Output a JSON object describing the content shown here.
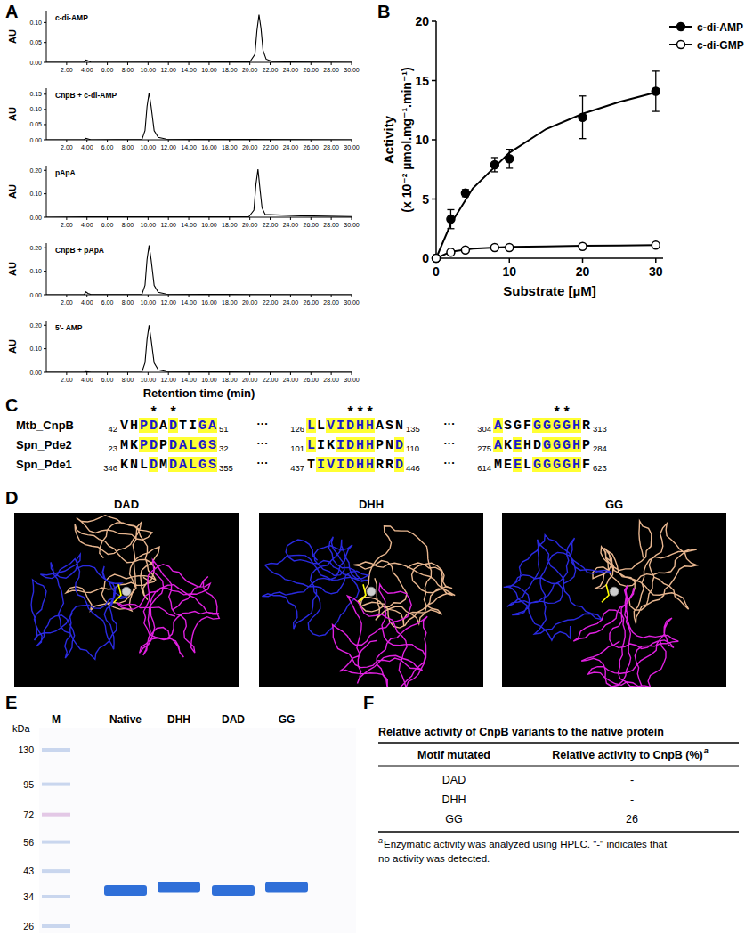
{
  "panel_labels": [
    "A",
    "B",
    "C",
    "D",
    "E",
    "F"
  ],
  "chart_data": [
    {
      "type": "line",
      "title": "c-di-AMP",
      "y_label": "AU",
      "color": "#000000",
      "x": [
        0,
        3.7,
        3.9,
        4.1,
        4.4,
        20.0,
        20.5,
        20.7,
        20.9,
        21.1,
        21.3,
        21.6,
        22.2,
        24,
        30
      ],
      "values": [
        0,
        0,
        0.006,
        0.004,
        0,
        0.001,
        0.02,
        0.08,
        0.12,
        0.085,
        0.03,
        0.008,
        0.002,
        0.001,
        0
      ],
      "xlim": [
        0,
        30
      ],
      "xticks": [
        {
          "value": 2,
          "label": "2.00"
        },
        {
          "value": 4,
          "label": "4.00"
        },
        {
          "value": 6,
          "label": "6.00"
        },
        {
          "value": 8,
          "label": "8.00"
        },
        {
          "value": 10,
          "label": "10.00"
        },
        {
          "value": 12,
          "label": "12.00"
        },
        {
          "value": 14,
          "label": "14.00"
        },
        {
          "value": 16,
          "label": "16.00"
        },
        {
          "value": 18,
          "label": "18.00"
        },
        {
          "value": 20,
          "label": "20.00"
        },
        {
          "value": 22,
          "label": "22.00"
        },
        {
          "value": 24,
          "label": "24.00"
        },
        {
          "value": 26,
          "label": "26.00"
        },
        {
          "value": 28,
          "label": "28.00"
        },
        {
          "value": 30,
          "label": "30.00"
        }
      ],
      "ylim": [
        0,
        0.13
      ],
      "yticks": [
        {
          "value": 0,
          "label": "0.00"
        },
        {
          "value": 0.05,
          "label": "0.05"
        },
        {
          "value": 0.1,
          "label": "0.10"
        }
      ]
    },
    {
      "type": "line",
      "title": "CnpB + c-di-AMP",
      "y_label": "AU",
      "color": "#000000",
      "x": [
        0,
        3.7,
        3.9,
        4.1,
        4.4,
        9.4,
        9.7,
        9.9,
        10.1,
        10.3,
        10.6,
        11.0,
        11.8,
        20,
        30
      ],
      "values": [
        0,
        0,
        0.005,
        0.003,
        0,
        0.001,
        0.03,
        0.11,
        0.155,
        0.11,
        0.03,
        0.008,
        0.002,
        0.001,
        0
      ],
      "xlim": [
        0,
        30
      ],
      "xticks": [
        {
          "value": 2,
          "label": "2.00"
        },
        {
          "value": 4,
          "label": "4.00"
        },
        {
          "value": 6,
          "label": "6.00"
        },
        {
          "value": 8,
          "label": "8.00"
        },
        {
          "value": 10,
          "label": "10.00"
        },
        {
          "value": 12,
          "label": "12.00"
        },
        {
          "value": 14,
          "label": "14.00"
        },
        {
          "value": 16,
          "label": "16.00"
        },
        {
          "value": 18,
          "label": "18.00"
        },
        {
          "value": 20,
          "label": "20.00"
        },
        {
          "value": 22,
          "label": "22.00"
        },
        {
          "value": 24,
          "label": "24.00"
        },
        {
          "value": 26,
          "label": "26.00"
        },
        {
          "value": 28,
          "label": "28.00"
        },
        {
          "value": 30,
          "label": "30.00"
        }
      ],
      "ylim": [
        0,
        0.17
      ],
      "yticks": [
        {
          "value": 0,
          "label": "0.00"
        },
        {
          "value": 0.05,
          "label": "0.05"
        },
        {
          "value": 0.1,
          "label": "0.10"
        },
        {
          "value": 0.15,
          "label": "0.15"
        }
      ]
    },
    {
      "type": "line",
      "title": "pApA",
      "y_label": "AU",
      "color": "#000000",
      "x": [
        0,
        4,
        19.9,
        20.4,
        20.6,
        20.8,
        21.0,
        21.2,
        21.5,
        22.5,
        25,
        30
      ],
      "values": [
        0,
        0.002,
        0.002,
        0.03,
        0.14,
        0.205,
        0.12,
        0.04,
        0.012,
        0.01,
        0.006,
        0.003
      ],
      "xlim": [
        0,
        30
      ],
      "xticks": [
        {
          "value": 2,
          "label": "2.00"
        },
        {
          "value": 4,
          "label": "4.00"
        },
        {
          "value": 6,
          "label": "6.00"
        },
        {
          "value": 8,
          "label": "8.00"
        },
        {
          "value": 10,
          "label": "10.00"
        },
        {
          "value": 12,
          "label": "12.00"
        },
        {
          "value": 14,
          "label": "14.00"
        },
        {
          "value": 16,
          "label": "16.00"
        },
        {
          "value": 18,
          "label": "18.00"
        },
        {
          "value": 20,
          "label": "20.00"
        },
        {
          "value": 22,
          "label": "22.00"
        },
        {
          "value": 24,
          "label": "24.00"
        },
        {
          "value": 26,
          "label": "26.00"
        },
        {
          "value": 28,
          "label": "28.00"
        },
        {
          "value": 30,
          "label": "30.00"
        }
      ],
      "ylim": [
        0,
        0.22
      ],
      "yticks": [
        {
          "value": 0,
          "label": "0.00"
        },
        {
          "value": 0.1,
          "label": "0.10"
        },
        {
          "value": 0.2,
          "label": "0.20"
        }
      ]
    },
    {
      "type": "line",
      "title": "CnpB + pApA",
      "y_label": "AU",
      "color": "#000000",
      "x": [
        0,
        3.7,
        3.9,
        4.1,
        4.4,
        9.4,
        9.7,
        9.9,
        10.1,
        10.3,
        10.6,
        11.0,
        11.8,
        20,
        30
      ],
      "values": [
        0,
        0,
        0.012,
        0.006,
        0.001,
        0.002,
        0.04,
        0.15,
        0.21,
        0.15,
        0.04,
        0.01,
        0.003,
        0.001,
        0
      ],
      "xlim": [
        0,
        30
      ],
      "xticks": [
        {
          "value": 2,
          "label": "2.00"
        },
        {
          "value": 4,
          "label": "4.00"
        },
        {
          "value": 6,
          "label": "6.00"
        },
        {
          "value": 8,
          "label": "8.00"
        },
        {
          "value": 10,
          "label": "10.00"
        },
        {
          "value": 12,
          "label": "12.00"
        },
        {
          "value": 14,
          "label": "14.00"
        },
        {
          "value": 16,
          "label": "16.00"
        },
        {
          "value": 18,
          "label": "18.00"
        },
        {
          "value": 20,
          "label": "20.00"
        },
        {
          "value": 22,
          "label": "22.00"
        },
        {
          "value": 24,
          "label": "24.00"
        },
        {
          "value": 26,
          "label": "26.00"
        },
        {
          "value": 28,
          "label": "28.00"
        },
        {
          "value": 30,
          "label": "30.00"
        }
      ],
      "ylim": [
        0,
        0.22
      ],
      "yticks": [
        {
          "value": 0,
          "label": "0.00"
        },
        {
          "value": 0.1,
          "label": "0.10"
        },
        {
          "value": 0.2,
          "label": "0.20"
        }
      ]
    },
    {
      "type": "line",
      "title": "5'- AMP",
      "y_label": "AU",
      "x_label": "Retention time (min)",
      "color": "#000000",
      "x": [
        0,
        3.7,
        3.9,
        4.1,
        4.4,
        9.4,
        9.7,
        9.9,
        10.1,
        10.3,
        10.6,
        11.0,
        11.8,
        20,
        30
      ],
      "values": [
        0,
        0,
        0.003,
        0.002,
        0,
        0.001,
        0.04,
        0.14,
        0.2,
        0.14,
        0.04,
        0.01,
        0.003,
        0.001,
        0
      ],
      "xlim": [
        0,
        30
      ],
      "xticks": [
        {
          "value": 2,
          "label": "2.00"
        },
        {
          "value": 4,
          "label": "4.00"
        },
        {
          "value": 6,
          "label": "6.00"
        },
        {
          "value": 8,
          "label": "8.00"
        },
        {
          "value": 10,
          "label": "10.00"
        },
        {
          "value": 12,
          "label": "12.00"
        },
        {
          "value": 14,
          "label": "14.00"
        },
        {
          "value": 16,
          "label": "16.00"
        },
        {
          "value": 18,
          "label": "18.00"
        },
        {
          "value": 20,
          "label": "20.00"
        },
        {
          "value": 22,
          "label": "22.00"
        },
        {
          "value": 24,
          "label": "24.00"
        },
        {
          "value": 26,
          "label": "26.00"
        },
        {
          "value": 28,
          "label": "28.00"
        },
        {
          "value": 30,
          "label": "30.00"
        }
      ],
      "ylim": [
        0,
        0.22
      ],
      "yticks": [
        {
          "value": 0,
          "label": "0.00"
        },
        {
          "value": 0.1,
          "label": "0.10"
        },
        {
          "value": 0.2,
          "label": "0.20"
        }
      ]
    },
    {
      "type": "scatter",
      "x_label": "Substrate [µM]",
      "y_label": [
        "Activity",
        "(x 10⁻² µmol.mg⁻¹.min⁻¹)"
      ],
      "legend": "top-right",
      "xlim": [
        0,
        31
      ],
      "xticks": [
        0,
        10,
        20,
        30
      ],
      "ylim": [
        0,
        20
      ],
      "yticks": [
        0,
        5,
        10,
        15,
        20
      ],
      "series": [
        {
          "name": "c-di-AMP",
          "color": "#000000",
          "marker": "circle",
          "x": [
            0,
            2,
            4,
            8,
            10,
            20,
            30
          ],
          "values": [
            0,
            3.3,
            5.5,
            7.9,
            8.4,
            11.9,
            14.1
          ],
          "error": [
            0,
            0.8,
            0.3,
            0.6,
            0.8,
            1.8,
            1.7
          ],
          "fit": {
            "x": [
              0,
              2,
              5,
              10,
              15,
              20,
              25,
              30
            ],
            "values": [
              0,
              2.9,
              5.9,
              8.9,
              10.9,
              12.2,
              13.2,
              14.0
            ]
          }
        },
        {
          "name": "c-di-GMP",
          "color": "#000000",
          "marker": "open-circle",
          "x": [
            0,
            2,
            4,
            8,
            10,
            20,
            30
          ],
          "values": [
            0,
            0.5,
            0.7,
            0.9,
            0.9,
            1.0,
            1.1
          ],
          "error": [
            0,
            0.1,
            0.1,
            0.1,
            0.1,
            0.1,
            0.1
          ],
          "fit": {
            "x": [
              0,
              2,
              5,
              10,
              15,
              20,
              25,
              30
            ],
            "values": [
              0,
              0.55,
              0.8,
              0.95,
              1.0,
              1.05,
              1.08,
              1.1
            ]
          }
        }
      ]
    }
  ],
  "alignment": {
    "conserved_mark": "*",
    "gap": "···",
    "conserved": [
      [
        3,
        5
      ],
      [
        4,
        5,
        6
      ],
      [
        6,
        7
      ]
    ],
    "rows": [
      {
        "name": "Mtb_CnpB",
        "blocks": [
          {
            "start": 42,
            "seq": "VHPDADTIGA",
            "end": 51,
            "highlight": [
              2,
              3,
              5,
              8,
              9
            ]
          },
          {
            "start": 126,
            "seq": "LLVIDHHASN",
            "end": 135,
            "highlight": [
              0,
              2,
              3,
              4,
              5,
              6
            ]
          },
          {
            "start": 304,
            "seq": "ASGFGGGGHR",
            "end": 313,
            "highlight": [
              0,
              4,
              5,
              6,
              7,
              8
            ]
          }
        ]
      },
      {
        "name": "Spn_Pde2",
        "blocks": [
          {
            "start": 23,
            "seq": "MKPDPDALGS",
            "end": 32,
            "highlight": [
              2,
              3,
              5,
              6,
              7,
              8,
              9
            ]
          },
          {
            "start": 101,
            "seq": "LIKIDHHPND",
            "end": 110,
            "highlight": [
              0,
              3,
              4,
              5,
              6,
              9
            ]
          },
          {
            "start": 275,
            "seq": "AKEHDGGGHP",
            "end": 284,
            "highlight": [
              0,
              2,
              5,
              6,
              7,
              8
            ]
          }
        ]
      },
      {
        "name": "Spn_Pde1",
        "blocks": [
          {
            "start": 346,
            "seq": "KNLDMDALGS",
            "end": 355,
            "highlight": [
              3,
              5,
              6,
              7,
              8,
              9
            ]
          },
          {
            "start": 437,
            "seq": "TIVIDHHRRD",
            "end": 446,
            "highlight": [
              1,
              2,
              3,
              4,
              5,
              6,
              9
            ]
          },
          {
            "start": 614,
            "seq": "MEELGGGGHF",
            "end": 623,
            "highlight": [
              2,
              4,
              5,
              6,
              7,
              8
            ]
          }
        ]
      }
    ]
  },
  "structures": {
    "labels": [
      "DAD",
      "DHH",
      "GG"
    ]
  },
  "gel": {
    "unit": "kDa",
    "lanes": [
      "M",
      "Native",
      "DHH",
      "DAD",
      "GG"
    ],
    "ladder": [
      130,
      95,
      72,
      56,
      43,
      34,
      26
    ],
    "bands_kda": [
      36,
      37,
      36,
      37
    ]
  },
  "table": {
    "title": "Relative activity of CnpB variants to the native protein",
    "header": [
      "Motif mutated",
      "Relative activity to CnpB (%)"
    ],
    "note_mark": "a",
    "rows": [
      [
        "DAD",
        "-"
      ],
      [
        "DHH",
        "-"
      ],
      [
        "GG",
        26
      ]
    ],
    "footnote": [
      "Enzymatic activity was analyzed using HPLC. \"-\" indicates that",
      "no activity was detected."
    ]
  }
}
